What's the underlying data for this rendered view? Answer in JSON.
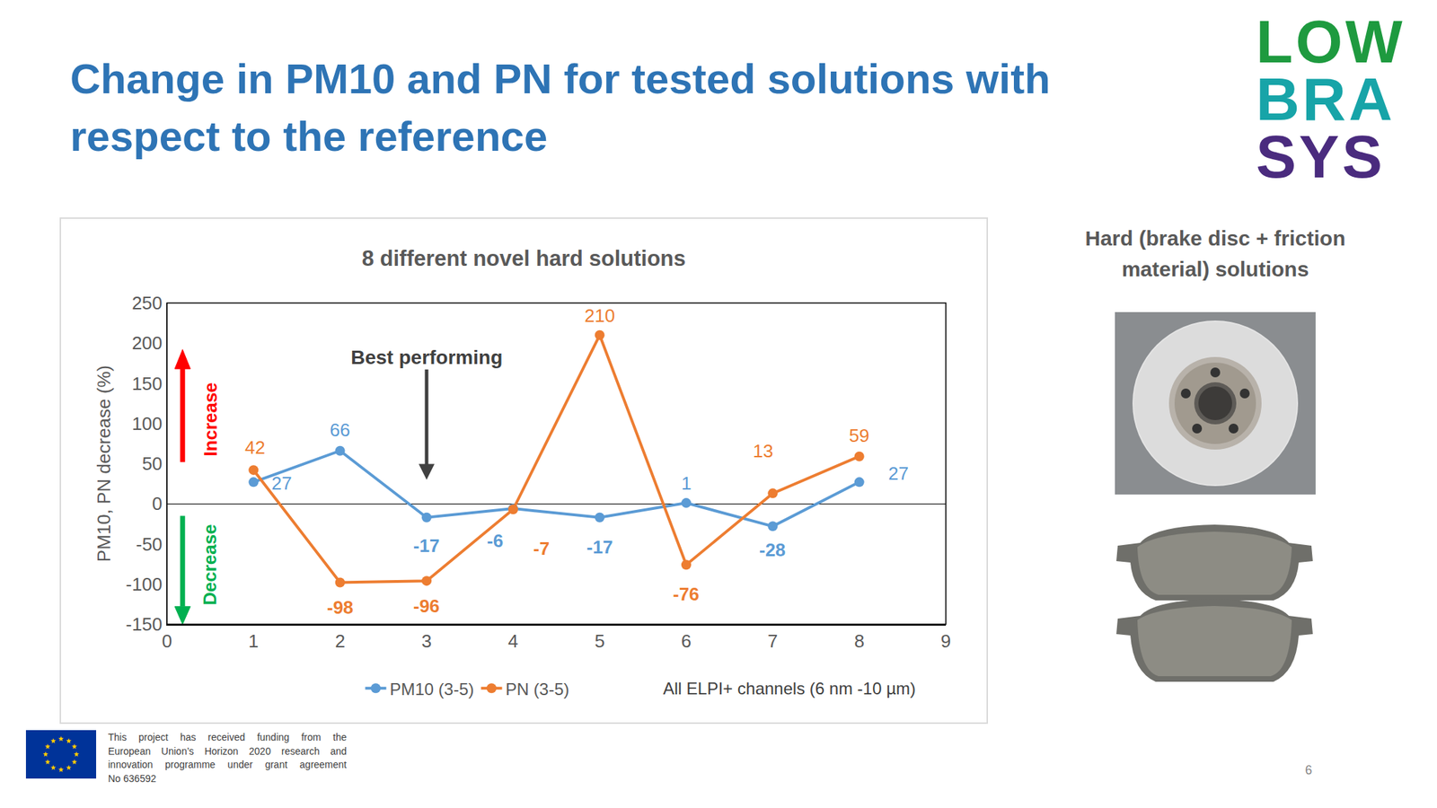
{
  "slide": {
    "title_lines": [
      "Change in PM10 and PN for tested solutions with",
      "respect to the reference"
    ],
    "logo_lines": [
      {
        "text": "LOW",
        "color": "#1e9a3f"
      },
      {
        "text": "BRA",
        "color": "#17a4a8"
      },
      {
        "text": "SYS",
        "color": "#4a2b7e"
      }
    ],
    "side_title": "Hard (brake disc + friction material) solutions",
    "footer_lines": [
      "This project has received funding from the",
      "European Union’s Horizon 2020 research and",
      "innovation programme under grant agreement",
      "No 636592"
    ],
    "page_number": "6"
  },
  "chart_data": {
    "type": "line",
    "title": "8 different novel hard solutions",
    "y_label": "PM10, PN decrease (%)",
    "x": [
      1,
      2,
      3,
      4,
      5,
      6,
      7,
      8
    ],
    "series": [
      {
        "name": "PM10 (3-5)",
        "color": "#5b9bd5",
        "values": [
          27,
          66,
          -17,
          -6,
          -17,
          1,
          -28,
          27
        ]
      },
      {
        "name": "PN (3-5)",
        "color": "#ed7d31",
        "values": [
          42,
          -98,
          -96,
          -7,
          210,
          -76,
          13,
          59
        ]
      }
    ],
    "xlim": [
      0,
      9
    ],
    "xticks": [
      0,
      1,
      2,
      3,
      4,
      5,
      6,
      7,
      8,
      9
    ],
    "ylim": [
      -150,
      250
    ],
    "yticks": [
      -150,
      -100,
      -50,
      0,
      50,
      100,
      150,
      200,
      250
    ],
    "grid": false,
    "marker": "circle",
    "data_labels": true,
    "legend": "bottom",
    "legend_note": "All ELPI+ channels (6 nm -10 µm)",
    "annotations": [
      {
        "text": "Best performing",
        "x": 3
      },
      {
        "text": "Increase",
        "color": "#ff0000"
      },
      {
        "text": "Decrease",
        "color": "#00b050"
      }
    ]
  }
}
